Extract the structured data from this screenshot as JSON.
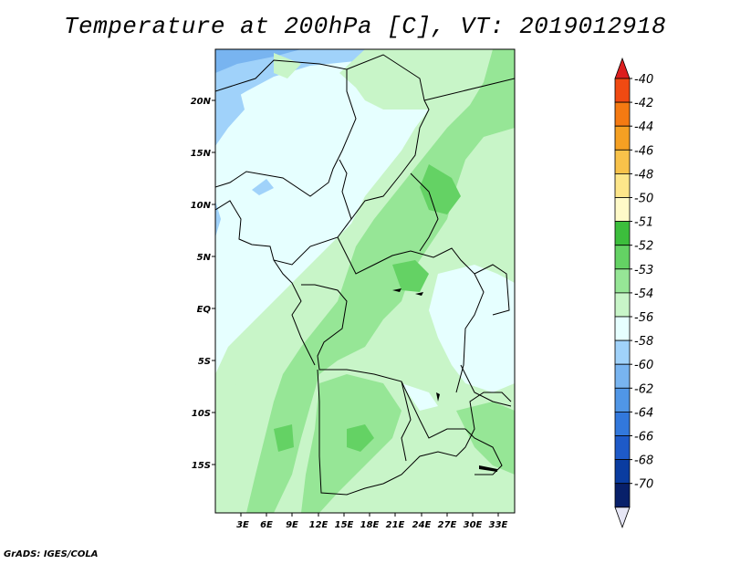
{
  "title": "Temperature at 200hPa [C], VT: 2019012918",
  "credit": "GrADS: IGES/COLA",
  "map": {
    "lat_labels": [
      "20N",
      "15N",
      "10N",
      "5N",
      "EQ",
      "5S",
      "10S",
      "15S"
    ],
    "lon_labels": [
      "3E",
      "6E",
      "9E",
      "12E",
      "15E",
      "18E",
      "21E",
      "24E",
      "27E",
      "30E",
      "33E"
    ]
  },
  "colorbar": {
    "labels": [
      "-40",
      "-42",
      "-44",
      "-46",
      "-48",
      "-50",
      "-51",
      "-52",
      "-53",
      "-54",
      "-56",
      "-58",
      "-60",
      "-62",
      "-64",
      "-66",
      "-68",
      "-70"
    ],
    "colors": [
      "#dc1e1e",
      "#f04a12",
      "#f57a12",
      "#f5a023",
      "#f8c24a",
      "#fde68a",
      "#fffac8",
      "#3cbe3c",
      "#64d264",
      "#96e696",
      "#c8f5c8",
      "#e6ffff",
      "#a0d2fa",
      "#78b4f0",
      "#5096e6",
      "#3278dc",
      "#1e5ac8",
      "#0a3ca0",
      "#08206a",
      "#e6e6f5"
    ]
  }
}
